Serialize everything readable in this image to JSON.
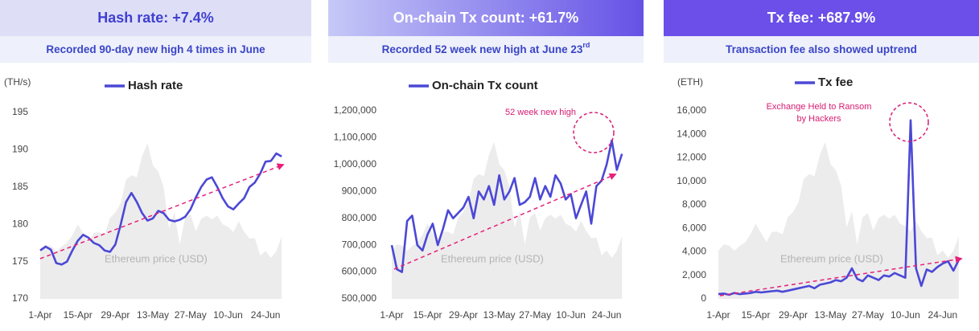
{
  "chart_data": [
    {
      "type": "line",
      "title": "Hash rate: +7.4%",
      "subtitle": "Recorded 90-day new high 4 times in June",
      "y_label": "(TH/s)",
      "categories": [
        "1-Apr",
        null,
        null,
        null,
        null,
        null,
        null,
        "15-Apr",
        null,
        null,
        null,
        null,
        null,
        null,
        "29-Apr",
        null,
        null,
        null,
        null,
        null,
        null,
        "13-May",
        null,
        null,
        null,
        null,
        null,
        null,
        "27-May",
        null,
        null,
        null,
        null,
        null,
        null,
        "10-Jun",
        null,
        null,
        null,
        null,
        null,
        null,
        "24-Jun",
        null,
        null,
        null
      ],
      "ylim": [
        170,
        195
      ],
      "yticks": [
        170,
        175,
        180,
        185,
        190,
        195
      ],
      "grid": false,
      "y2lim": [
        1000,
        4800
      ],
      "series": [
        {
          "name": "Hash rate",
          "color": "#4b48d6",
          "values": [
            176.5,
            177,
            176.6,
            174.8,
            174.6,
            175,
            176.5,
            177.8,
            178.6,
            178.2,
            177.5,
            177.2,
            176.5,
            176.3,
            177.3,
            180,
            183,
            184.2,
            183,
            181.5,
            180.5,
            180.8,
            181.8,
            181.5,
            180.6,
            180.4,
            180.6,
            181,
            182,
            183.6,
            185,
            186,
            186.3,
            185,
            183.5,
            182.4,
            182,
            182.8,
            183.5,
            185,
            185.6,
            186.8,
            188.4,
            188.5,
            189.5,
            189.1
          ]
        },
        {
          "name": "Ethereum price (USD)",
          "color": "#ececec",
          "type": "area",
          "axis": "y2",
          "values": [
            1970,
            2100,
            2080,
            1970,
            2070,
            2140,
            2300,
            2520,
            2330,
            2150,
            2350,
            2360,
            2300,
            2650,
            2760,
            2950,
            3430,
            3520,
            3480,
            3910,
            4170,
            3720,
            3600,
            3280,
            2440,
            2770,
            2100,
            2650,
            2730,
            2380,
            2630,
            2700,
            2620,
            2700,
            2520,
            2470,
            2360,
            2580,
            2370,
            2230,
            2240,
            1880,
            1980,
            1830,
            1970,
            2270
          ]
        }
      ],
      "annotations": []
    },
    {
      "type": "line",
      "title": "On-chain Tx count: +61.7%",
      "subtitle": "Recorded 52 week new high at June 23",
      "subtitle_superscript": "rd",
      "categories": [
        "1-Apr",
        null,
        null,
        null,
        null,
        null,
        null,
        "15-Apr",
        null,
        null,
        null,
        null,
        null,
        null,
        "29-Apr",
        null,
        null,
        null,
        null,
        null,
        null,
        "13-May",
        null,
        null,
        null,
        null,
        null,
        null,
        "27-May",
        null,
        null,
        null,
        null,
        null,
        null,
        "10-Jun",
        null,
        null,
        null,
        null,
        null,
        null,
        "24-Jun",
        null,
        null,
        null
      ],
      "ylim": [
        500000,
        1200000
      ],
      "yticks": [
        {
          "value": 500000,
          "label": "500,000"
        },
        {
          "value": 600000,
          "label": "600,000"
        },
        {
          "value": 700000,
          "label": "700,000"
        },
        {
          "value": 800000,
          "label": "800,000"
        },
        {
          "value": 900000,
          "label": "900,000"
        },
        {
          "value": 1000000,
          "label": "1,000,000"
        },
        {
          "value": 1100000,
          "label": "1,100,000"
        },
        {
          "value": 1200000,
          "label": "1,200,000"
        }
      ],
      "grid": false,
      "y2lim": [
        1000,
        4800
      ],
      "series": [
        {
          "name": "On-chain Tx count",
          "color": "#4b48d6",
          "values": [
            700000,
            610000,
            600000,
            790000,
            810000,
            700000,
            680000,
            740000,
            780000,
            700000,
            760000,
            830000,
            800000,
            820000,
            840000,
            880000,
            800000,
            900000,
            870000,
            920000,
            850000,
            960000,
            870000,
            900000,
            950000,
            850000,
            860000,
            880000,
            950000,
            870000,
            920000,
            880000,
            960000,
            930000,
            870000,
            890000,
            800000,
            850000,
            900000,
            780000,
            920000,
            940000,
            1000000,
            1090000,
            980000,
            1040000
          ]
        },
        {
          "name": "Ethereum price (USD)",
          "color": "#ececec",
          "type": "area",
          "axis": "y2",
          "values": [
            1970,
            2100,
            2080,
            1970,
            2070,
            2140,
            2300,
            2520,
            2330,
            2150,
            2350,
            2360,
            2300,
            2650,
            2760,
            2950,
            3430,
            3520,
            3480,
            3910,
            4170,
            3720,
            3600,
            3280,
            2440,
            2770,
            2100,
            2650,
            2730,
            2380,
            2630,
            2700,
            2620,
            2700,
            2520,
            2470,
            2360,
            2580,
            2370,
            2230,
            2240,
            1880,
            1980,
            1830,
            1970,
            2270
          ]
        }
      ],
      "annotations": [
        "52 week new high"
      ]
    },
    {
      "type": "line",
      "title": "Tx fee: +687.9%",
      "subtitle": "Transaction fee also showed uptrend",
      "y_label": "(ETH)",
      "categories": [
        "1-Apr",
        null,
        null,
        null,
        null,
        null,
        null,
        "15-Apr",
        null,
        null,
        null,
        null,
        null,
        null,
        "29-Apr",
        null,
        null,
        null,
        null,
        null,
        null,
        "13-May",
        null,
        null,
        null,
        null,
        null,
        null,
        "27-May",
        null,
        null,
        null,
        null,
        null,
        null,
        "10-Jun",
        null,
        null,
        null,
        null,
        null,
        null,
        "24-Jun",
        null,
        null,
        null
      ],
      "ylim": [
        0,
        16000
      ],
      "yticks": [
        0,
        {
          "value": 2000,
          "label": "2,000"
        },
        {
          "value": 4000,
          "label": "4,000"
        },
        {
          "value": 6000,
          "label": "6,000"
        },
        {
          "value": 8000,
          "label": "8,000"
        },
        {
          "value": 10000,
          "label": "10,000"
        },
        {
          "value": 12000,
          "label": "12,000"
        },
        {
          "value": 14000,
          "label": "14,000"
        },
        {
          "value": 16000,
          "label": "16,000"
        }
      ],
      "grid": false,
      "y2lim": [
        1000,
        4800
      ],
      "series": [
        {
          "name": "Tx fee",
          "color": "#4b48d6",
          "values": [
            400,
            450,
            350,
            500,
            400,
            450,
            500,
            600,
            550,
            600,
            650,
            700,
            600,
            700,
            800,
            900,
            1000,
            1100,
            900,
            1200,
            1300,
            1400,
            1600,
            1500,
            1800,
            2600,
            1700,
            1500,
            2000,
            1800,
            1600,
            2000,
            1900,
            2200,
            2000,
            1800,
            15200,
            2600,
            1100,
            2500,
            2300,
            2700,
            3000,
            3200,
            2400,
            3300
          ]
        },
        {
          "name": "Ethereum price (USD)",
          "color": "#ececec",
          "type": "area",
          "axis": "y2",
          "values": [
            1970,
            2100,
            2080,
            1970,
            2070,
            2140,
            2300,
            2520,
            2330,
            2150,
            2350,
            2360,
            2300,
            2650,
            2760,
            2950,
            3430,
            3520,
            3480,
            3910,
            4170,
            3720,
            3600,
            3280,
            2440,
            2770,
            2100,
            2650,
            2730,
            2380,
            2630,
            2700,
            2620,
            2700,
            2520,
            2470,
            2360,
            2580,
            2370,
            2230,
            2240,
            1880,
            1980,
            1830,
            1970,
            2270
          ]
        }
      ],
      "annotations": [
        "Exchange Held to Ransom",
        "by Hackers"
      ]
    }
  ]
}
